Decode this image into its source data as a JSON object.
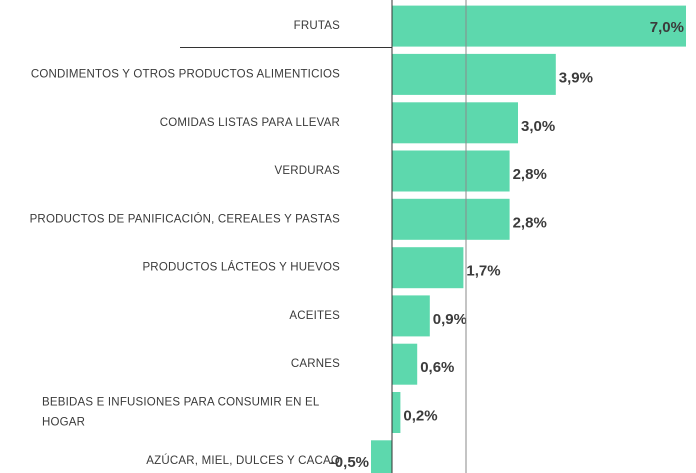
{
  "chart_data": {
    "type": "bar",
    "orientation": "horizontal",
    "categories": [
      [
        "FRUTAS"
      ],
      [
        "CONDIMENTOS Y OTROS PRODUCTOS ALIMENTICIOS"
      ],
      [
        "COMIDAS LISTAS PARA LLEVAR"
      ],
      [
        "VERDURAS"
      ],
      [
        "PRODUCTOS DE PANIFICACIÓN, CEREALES Y PASTAS"
      ],
      [
        "PRODUCTOS LÁCTEOS Y HUEVOS"
      ],
      [
        "ACEITES"
      ],
      [
        "CARNES"
      ],
      [
        "BEBIDAS E INFUSIONES PARA CONSUMIR EN EL",
        "HOGAR"
      ],
      [
        "AZÚCAR, MIEL, DULCES Y CACAO"
      ]
    ],
    "values": [
      7.0,
      3.9,
      3.0,
      2.8,
      2.8,
      1.7,
      0.9,
      0.6,
      0.2,
      -0.5
    ],
    "value_labels": [
      "7,0%",
      "3,9%",
      "3,0%",
      "2,8%",
      "2,8%",
      "1,7%",
      "0,9%",
      "0,6%",
      "0,2%",
      "-0,5%"
    ],
    "unit": "%",
    "xlim": [
      -0.5,
      7.0
    ],
    "colors": {
      "bar": "#5dd8ad",
      "axis": "#333333",
      "reference_line": "#8a8a8a"
    },
    "grid": false,
    "legend": "none"
  }
}
